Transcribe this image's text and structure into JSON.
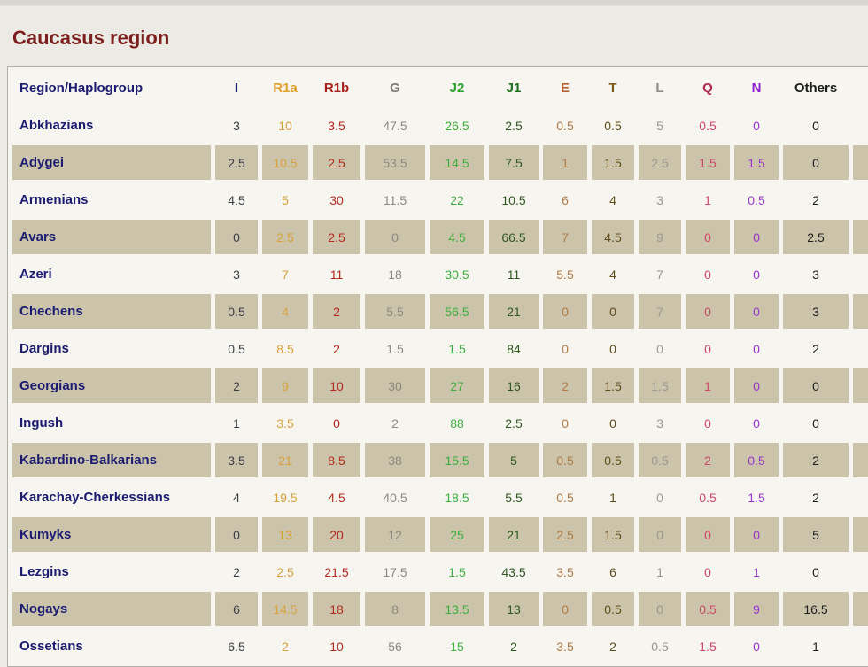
{
  "page": {
    "title": "Caucasus region"
  },
  "colors": {
    "page_background": "#eceae4",
    "table_background": "#f6f5f0",
    "tan_row_background": "#cbc4ab",
    "table_border": "#b2afa8",
    "title_color": "#7c1e1e",
    "region_name_color": "#1b1b70"
  },
  "chart_data": {
    "type": "table",
    "title": "Caucasus region",
    "region_column_header": "Region/Haplogroup",
    "columns": [
      {
        "label": "I",
        "header_color": "#1b1b70",
        "value_color": "#3c3c44"
      },
      {
        "label": "R1a",
        "header_color": "#e0a02c",
        "value_color": "#d9a23c"
      },
      {
        "label": "R1b",
        "header_color": "#a82019",
        "value_color": "#b32a1e"
      },
      {
        "label": "G",
        "header_color": "#807d74",
        "value_color": "#8c897f"
      },
      {
        "label": "J2",
        "header_color": "#2ea22e",
        "value_color": "#3fae3f"
      },
      {
        "label": "J1",
        "header_color": "#1f6e1f",
        "value_color": "#30571f"
      },
      {
        "label": "E",
        "header_color": "#b5622e",
        "value_color": "#b07a45"
      },
      {
        "label": "T",
        "header_color": "#7d5a16",
        "value_color": "#5f4d1a"
      },
      {
        "label": "L",
        "header_color": "#8f8d88",
        "value_color": "#9a978f"
      },
      {
        "label": "Q",
        "header_color": "#b02a50",
        "value_color": "#cc4768"
      },
      {
        "label": "N",
        "header_color": "#8f1fd4",
        "value_color": "#9a36cc"
      },
      {
        "label": "Others",
        "header_color": "#1c1c1c",
        "value_color": "#1c1c1c"
      }
    ],
    "rows": [
      {
        "region": "Abkhazians",
        "values": [
          "3",
          "10",
          "3.5",
          "47.5",
          "26.5",
          "2.5",
          "0.5",
          "0.5",
          "5",
          "0.5",
          "0",
          "0"
        ]
      },
      {
        "region": "Adygei",
        "values": [
          "2.5",
          "10.5",
          "2.5",
          "53.5",
          "14.5",
          "7.5",
          "1",
          "1.5",
          "2.5",
          "1.5",
          "1.5",
          "0"
        ]
      },
      {
        "region": "Armenians",
        "values": [
          "4.5",
          "5",
          "30",
          "11.5",
          "22",
          "10.5",
          "6",
          "4",
          "3",
          "1",
          "0.5",
          "2"
        ]
      },
      {
        "region": "Avars",
        "values": [
          "0",
          "2.5",
          "2.5",
          "0",
          "4.5",
          "66.5",
          "7",
          "4.5",
          "9",
          "0",
          "0",
          "2.5"
        ]
      },
      {
        "region": "Azeri",
        "values": [
          "3",
          "7",
          "11",
          "18",
          "30.5",
          "11",
          "5.5",
          "4",
          "7",
          "0",
          "0",
          "3"
        ]
      },
      {
        "region": "Chechens",
        "values": [
          "0.5",
          "4",
          "2",
          "5.5",
          "56.5",
          "21",
          "0",
          "0",
          "7",
          "0",
          "0",
          "3"
        ]
      },
      {
        "region": "Dargins",
        "values": [
          "0.5",
          "8.5",
          "2",
          "1.5",
          "1.5",
          "84",
          "0",
          "0",
          "0",
          "0",
          "0",
          "2"
        ]
      },
      {
        "region": "Georgians",
        "values": [
          "2",
          "9",
          "10",
          "30",
          "27",
          "16",
          "2",
          "1.5",
          "1.5",
          "1",
          "0",
          "0"
        ]
      },
      {
        "region": "Ingush",
        "values": [
          "1",
          "3.5",
          "0",
          "2",
          "88",
          "2.5",
          "0",
          "0",
          "3",
          "0",
          "0",
          "0"
        ]
      },
      {
        "region": "Kabardino-Balkarians",
        "values": [
          "3.5",
          "21",
          "8.5",
          "38",
          "15.5",
          "5",
          "0.5",
          "0.5",
          "0.5",
          "2",
          "0.5",
          "2"
        ]
      },
      {
        "region": "Karachay-Cherkessians",
        "values": [
          "4",
          "19.5",
          "4.5",
          "40.5",
          "18.5",
          "5.5",
          "0.5",
          "1",
          "0",
          "0.5",
          "1.5",
          "2"
        ]
      },
      {
        "region": "Kumyks",
        "values": [
          "0",
          "13",
          "20",
          "12",
          "25",
          "21",
          "2.5",
          "1.5",
          "0",
          "0",
          "0",
          "5"
        ]
      },
      {
        "region": "Lezgins",
        "values": [
          "2",
          "2.5",
          "21.5",
          "17.5",
          "1.5",
          "43.5",
          "3.5",
          "6",
          "1",
          "0",
          "1",
          "0"
        ]
      },
      {
        "region": "Nogays",
        "values": [
          "6",
          "14.5",
          "18",
          "8",
          "13.5",
          "13",
          "0",
          "0.5",
          "0",
          "0.5",
          "9",
          "16.5"
        ]
      },
      {
        "region": "Ossetians",
        "values": [
          "6.5",
          "2",
          "10",
          "56",
          "15",
          "2",
          "3.5",
          "2",
          "0.5",
          "1.5",
          "0",
          "1"
        ]
      }
    ]
  }
}
